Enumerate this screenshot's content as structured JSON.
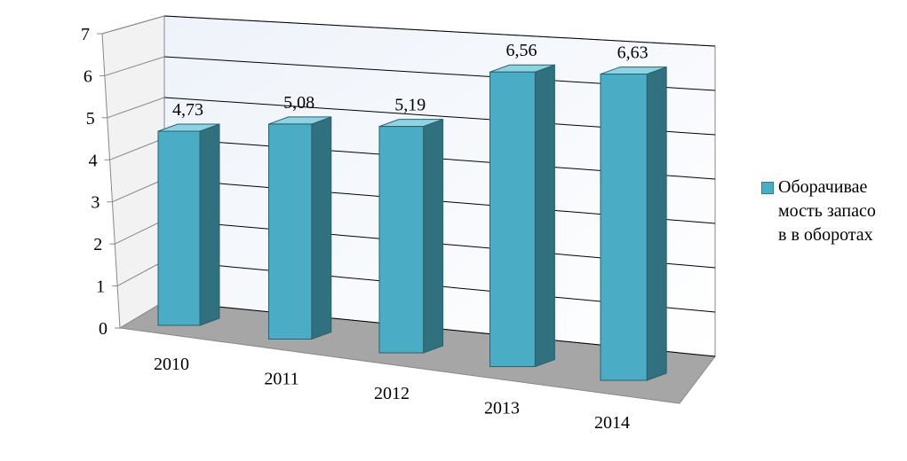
{
  "chart_data": {
    "type": "bar3d",
    "categories": [
      "2010",
      "2011",
      "2012",
      "2013",
      "2014"
    ],
    "series": [
      {
        "name": "Оборачиваемость запасов в оборотах",
        "color": "#4bacc6",
        "values": [
          4.73,
          5.08,
          5.19,
          6.56,
          6.63
        ],
        "value_labels": [
          "4,73",
          "5,08",
          "5,19",
          "6,56",
          "6,63"
        ]
      }
    ],
    "ylim": [
      0,
      7
    ],
    "yticks": [
      0,
      1,
      2,
      3,
      4,
      5,
      6,
      7
    ],
    "grid": true,
    "legend": "right"
  }
}
